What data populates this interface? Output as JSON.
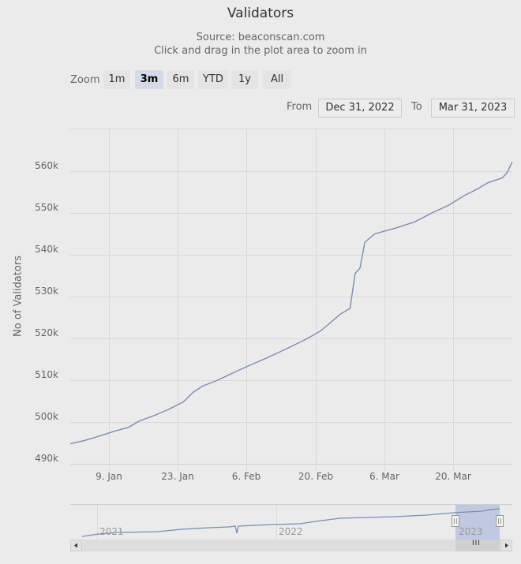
{
  "title": "Validators",
  "subtitle_source": "Source: beaconscan.com",
  "subtitle_hint": "Click and drag in the plot area to zoom in",
  "range_selector": {
    "label": "Zoom",
    "buttons": [
      {
        "label": "1m",
        "selected": false
      },
      {
        "label": "3m",
        "selected": true
      },
      {
        "label": "6m",
        "selected": false
      },
      {
        "label": "YTD",
        "selected": false
      },
      {
        "label": "1y",
        "selected": false
      },
      {
        "label": "All",
        "selected": false
      }
    ],
    "from_label": "From",
    "from_value": "Dec 31, 2022",
    "to_label": "To",
    "to_value": "Mar 31, 2023"
  },
  "navigator": {
    "year_labels": [
      "2021",
      "2022",
      "2023"
    ],
    "scroll_thumb_icon": "III"
  },
  "colors": {
    "line": "#7f8bb0",
    "grid": "#d8d8d8",
    "background": "#ebebeb",
    "navigator_mask": "#b9c3dd"
  },
  "chart_data": {
    "type": "line",
    "title": "Validators",
    "subtitle": "Source: beaconscan.com",
    "xlabel": "",
    "ylabel": "No of Validators",
    "x_tick_labels": [
      "9. Jan",
      "23. Jan",
      "6. Feb",
      "20. Feb",
      "6. Mar",
      "20. Mar"
    ],
    "y_tick_labels": [
      "490k",
      "500k",
      "510k",
      "520k",
      "530k",
      "540k",
      "550k",
      "560k"
    ],
    "ylim": [
      490000,
      567000
    ],
    "xrange": [
      "Dec 31, 2022",
      "Mar 31, 2023"
    ],
    "grid": true,
    "legend": "none",
    "series": [
      {
        "name": "Validators",
        "x_day_offset": [
          0,
          3,
          5,
          9,
          12,
          14,
          17,
          20,
          22,
          23,
          25,
          27,
          30,
          34,
          37,
          40,
          44,
          48,
          51,
          53,
          55,
          57,
          58,
          59,
          60,
          62,
          66,
          70,
          74,
          77,
          80,
          83,
          85,
          88,
          89,
          90
        ],
        "x": [
          "Dec 31",
          "Jan 3",
          "Jan 5",
          "Jan 9",
          "Jan 12",
          "Jan 14",
          "Jan 17",
          "Jan 20",
          "Jan 22",
          "Jan 23",
          "Jan 25",
          "Jan 27",
          "Jan 30",
          "Feb 3",
          "Feb 6",
          "Feb 9",
          "Feb 13",
          "Feb 17",
          "Feb 20",
          "Feb 22",
          "Feb 24",
          "Feb 26",
          "Feb 27",
          "Feb 28",
          "Mar 1",
          "Mar 3",
          "Mar 6",
          "Mar 10",
          "Mar 14",
          "Mar 17",
          "Mar 20",
          "Mar 23",
          "Mar 25",
          "Mar 28",
          "Mar 29",
          "Mar 30"
        ],
        "values": [
          494800,
          495600,
          496300,
          497800,
          498800,
          500200,
          501500,
          503000,
          504200,
          504800,
          507100,
          508600,
          510000,
          512200,
          513800,
          515300,
          517500,
          519800,
          521800,
          523800,
          525800,
          527200,
          535500,
          536800,
          543000,
          545000,
          546300,
          547800,
          550200,
          551800,
          554000,
          555800,
          557200,
          558400,
          559700,
          562200
        ]
      }
    ]
  }
}
